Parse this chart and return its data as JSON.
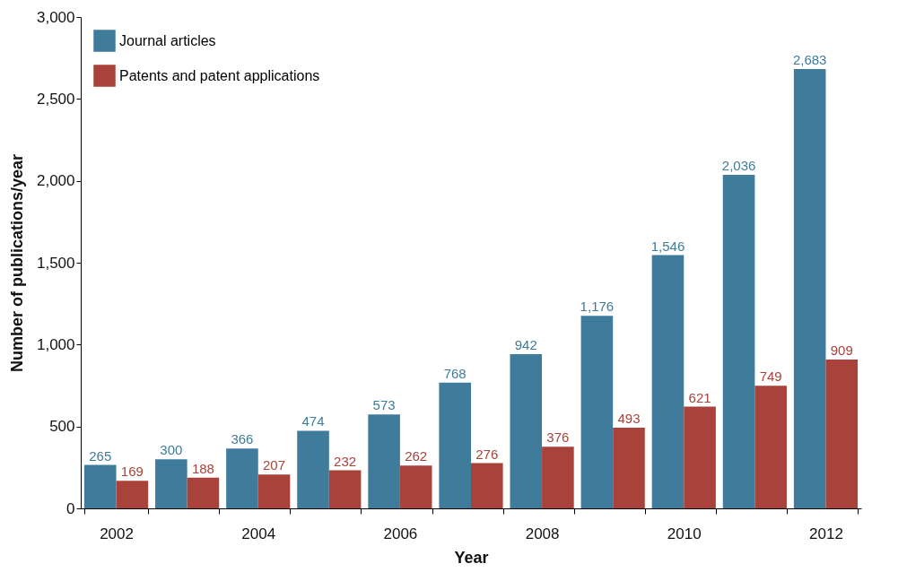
{
  "chart_data": {
    "type": "bar",
    "xlabel": "Year",
    "ylabel": "Number of publications/year",
    "categories": [
      "2002",
      null,
      "2004",
      null,
      "2006",
      null,
      "2008",
      null,
      "2010",
      null,
      "2012"
    ],
    "series": [
      {
        "name": "Journal articles",
        "color": "#3f7b9b",
        "values": [
          265,
          300,
          366,
          474,
          573,
          768,
          942,
          1176,
          1546,
          2036,
          2683
        ],
        "value_labels": [
          "265",
          "300",
          "366",
          "474",
          "573",
          "768",
          "942",
          "1,176",
          "1,546",
          "2,036",
          "2,683"
        ]
      },
      {
        "name": "Patents and patent applications",
        "color": "#a8423a",
        "values": [
          169,
          188,
          207,
          232,
          262,
          276,
          376,
          493,
          621,
          749,
          909
        ],
        "value_labels": [
          "169",
          "188",
          "207",
          "232",
          "262",
          "276",
          "376",
          "493",
          "621",
          "749",
          "909"
        ]
      }
    ],
    "ylim": [
      0,
      3000
    ],
    "yticks": [
      0,
      {
        "value": 500,
        "label": "500"
      },
      {
        "value": 1000,
        "label": "1,000"
      },
      {
        "value": 1500,
        "label": "1,500"
      },
      {
        "value": 2000,
        "label": "2,000"
      },
      {
        "value": 2500,
        "label": "2,500"
      },
      {
        "value": 3000,
        "label": "3,000"
      }
    ],
    "grid": false,
    "legend": "top left"
  }
}
